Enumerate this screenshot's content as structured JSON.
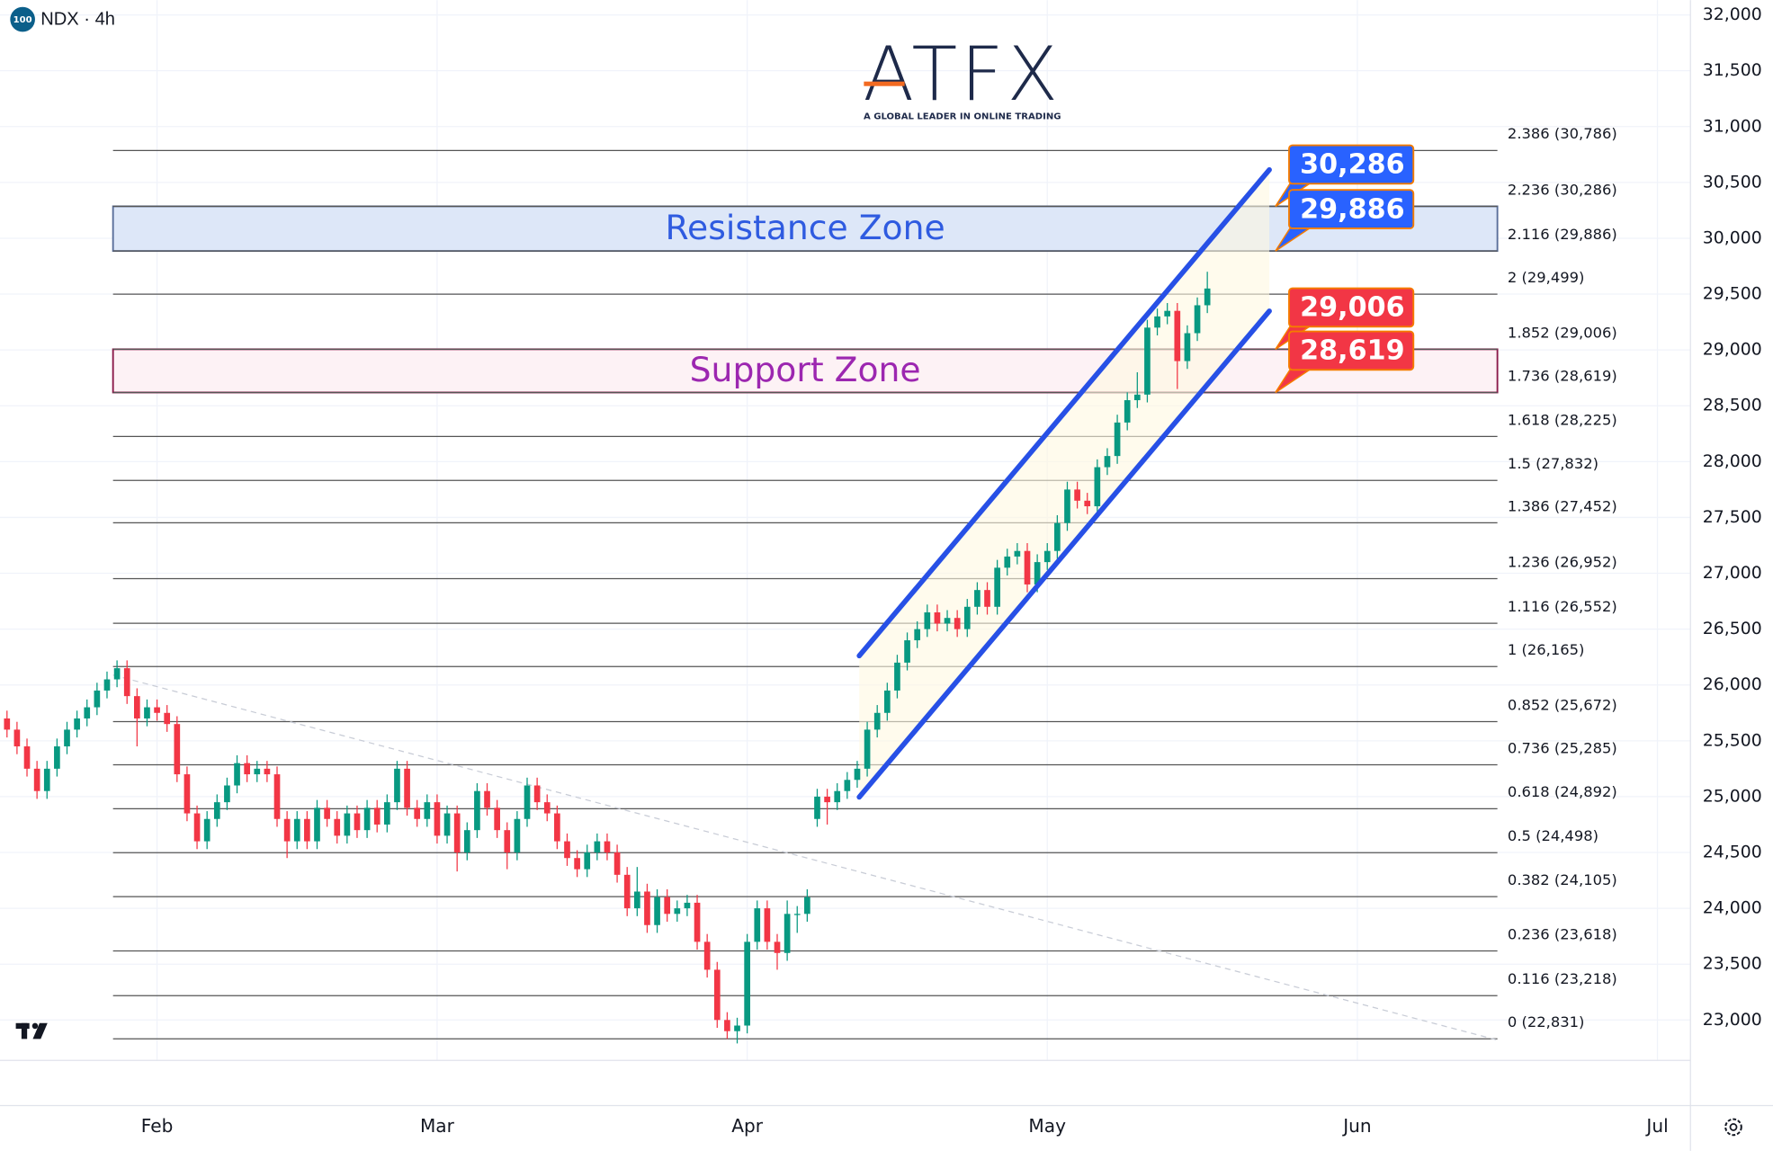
{
  "chart_data": {
    "type": "candlestick",
    "badge": "100",
    "symbol": "NDX · 4h",
    "brand": "ATFX",
    "tagline": "A GLOBAL LEADER IN ONLINE TRADING",
    "up_color": "#089981",
    "down_color": "#f23645",
    "grid": true,
    "xlim": [
      -15.7,
      153.3
    ],
    "ylim": [
      22638,
      32132
    ],
    "xticks": [
      {
        "value": 0,
        "label": "Feb"
      },
      {
        "value": 28,
        "label": "Mar"
      },
      {
        "value": 59,
        "label": "Apr"
      },
      {
        "value": 89,
        "label": "May"
      },
      {
        "value": 120,
        "label": "Jun"
      },
      {
        "value": 150,
        "label": "Jul"
      }
    ],
    "yticks": [
      {
        "value": 23000,
        "label": "23,000"
      },
      {
        "value": 23500,
        "label": "23,500"
      },
      {
        "value": 24000,
        "label": "24,000"
      },
      {
        "value": 24500,
        "label": "24,500"
      },
      {
        "value": 25000,
        "label": "25,000"
      },
      {
        "value": 25500,
        "label": "25,500"
      },
      {
        "value": 26000,
        "label": "26,000"
      },
      {
        "value": 26500,
        "label": "26,500"
      },
      {
        "value": 27000,
        "label": "27,000"
      },
      {
        "value": 27500,
        "label": "27,500"
      },
      {
        "value": 28000,
        "label": "28,000"
      },
      {
        "value": 28500,
        "label": "28,500"
      },
      {
        "value": 29000,
        "label": "29,000"
      },
      {
        "value": 29500,
        "label": "29,500"
      },
      {
        "value": 30000,
        "label": "30,000"
      },
      {
        "value": 30500,
        "label": "30,500"
      },
      {
        "value": 31000,
        "label": "31,000"
      },
      {
        "value": 31500,
        "label": "31,500"
      },
      {
        "value": 32000,
        "label": "32,000"
      }
    ],
    "x": [
      -15,
      -14,
      -13,
      -12,
      -11,
      -10,
      -9,
      -8,
      -7,
      -6,
      -5,
      -4,
      -3,
      -2,
      -1,
      0,
      1,
      2,
      3,
      4,
      5,
      6,
      7,
      8,
      9,
      10,
      11,
      12,
      13,
      14,
      15,
      16,
      17,
      18,
      19,
      20,
      21,
      22,
      23,
      24,
      25,
      26,
      27,
      28,
      29,
      30,
      31,
      32,
      33,
      34,
      35,
      36,
      37,
      38,
      39,
      40,
      41,
      42,
      43,
      44,
      45,
      46,
      47,
      48,
      49,
      50,
      51,
      52,
      53,
      54,
      55,
      56,
      57,
      58,
      59,
      60,
      61,
      62,
      63,
      64,
      65,
      66,
      67,
      68,
      69,
      70,
      71,
      72,
      73,
      74,
      75,
      76,
      77,
      78,
      79,
      80,
      81,
      82,
      83,
      84,
      85,
      86,
      87,
      88,
      89,
      90,
      91,
      92,
      93,
      94,
      95,
      96,
      97,
      98,
      99,
      100,
      101,
      102,
      103,
      104,
      105
    ],
    "open": [
      25700,
      25600,
      25450,
      25250,
      25050,
      25250,
      25450,
      25600,
      25700,
      25800,
      25950,
      26050,
      26150,
      25900,
      25700,
      25800,
      25750,
      25650,
      25200,
      24850,
      24600,
      24800,
      24950,
      25100,
      25300,
      25200,
      25250,
      25200,
      24800,
      24600,
      24800,
      24600,
      24900,
      24800,
      24650,
      24850,
      24700,
      24900,
      24750,
      24950,
      25250,
      24900,
      24800,
      24950,
      24650,
      24850,
      24500,
      24700,
      25050,
      24900,
      24700,
      24500,
      24800,
      25100,
      24950,
      24850,
      24600,
      24450,
      24350,
      24500,
      24600,
      24500,
      24300,
      24000,
      24150,
      23850,
      24100,
      23950,
      24000,
      24050,
      23700,
      23450,
      23000,
      22900,
      22950,
      23700,
      24000,
      23700,
      23600,
      23950,
      23950,
      24800,
      25000,
      24950,
      25050,
      25150,
      25250,
      25600,
      25750,
      25950,
      26200,
      26400,
      26500,
      26650,
      26550,
      26600,
      26500,
      26700,
      26850,
      26700,
      27050,
      27150,
      27200,
      26900,
      27100,
      27200,
      27450,
      27750,
      27650,
      27600,
      27950,
      28050,
      28350,
      28550,
      28600,
      29200,
      29300,
      29350,
      28900,
      29150,
      29400
    ],
    "high": [
      25770,
      25670,
      25520,
      25320,
      25320,
      25520,
      25670,
      25770,
      25870,
      26020,
      26120,
      26220,
      26220,
      25970,
      25870,
      25870,
      25820,
      25720,
      25270,
      24920,
      24870,
      25020,
      25170,
      25370,
      25370,
      25320,
      25320,
      25270,
      24870,
      24870,
      24870,
      24970,
      24970,
      24870,
      24920,
      24920,
      24970,
      24970,
      25020,
      25320,
      25320,
      24970,
      25020,
      25020,
      24920,
      24920,
      24770,
      25120,
      25120,
      24970,
      24770,
      24870,
      25170,
      25170,
      25020,
      24920,
      24670,
      24520,
      24570,
      24670,
      24670,
      24570,
      24370,
      24370,
      24220,
      24170,
      24170,
      24070,
      24120,
      24120,
      23770,
      23520,
      23070,
      23020,
      23770,
      24070,
      24070,
      23770,
      24070,
      24020,
      24170,
      25070,
      25070,
      25120,
      25220,
      25320,
      25670,
      25820,
      26020,
      26270,
      26470,
      26570,
      26720,
      26720,
      26670,
      26670,
      26770,
      26920,
      26920,
      27120,
      27220,
      27270,
      27270,
      27170,
      27270,
      27520,
      27820,
      27820,
      27720,
      28020,
      28120,
      28420,
      28620,
      28800,
      29270,
      29370,
      29420,
      29420,
      29220,
      29470,
      29700
    ],
    "low": [
      25530,
      25380,
      25180,
      24980,
      24980,
      25180,
      25380,
      25530,
      25630,
      25730,
      25880,
      25980,
      25830,
      25450,
      25630,
      25680,
      25580,
      25130,
      24780,
      24530,
      24530,
      24730,
      24880,
      25030,
      25130,
      25130,
      25130,
      24730,
      24450,
      24530,
      24530,
      24530,
      24730,
      24580,
      24580,
      24630,
      24630,
      24680,
      24680,
      24880,
      24830,
      24730,
      24730,
      24580,
      24580,
      24330,
      24430,
      24630,
      24830,
      24630,
      24350,
      24430,
      24730,
      24880,
      24780,
      24530,
      24380,
      24280,
      24280,
      24430,
      24430,
      24230,
      23930,
      23930,
      23780,
      23780,
      23880,
      23880,
      23930,
      23630,
      23380,
      22930,
      22830,
      22790,
      22880,
      23630,
      23630,
      23450,
      23530,
      23780,
      23880,
      24730,
      24750,
      24880,
      24980,
      25080,
      25180,
      25530,
      25680,
      25880,
      26130,
      26330,
      26430,
      26480,
      26480,
      26430,
      26430,
      26630,
      26630,
      26630,
      26980,
      27080,
      26830,
      26830,
      27030,
      27130,
      27380,
      27580,
      27530,
      27530,
      27880,
      27980,
      28280,
      28480,
      28530,
      29130,
      29230,
      28650,
      28830,
      29080,
      29330
    ],
    "close": [
      25600,
      25450,
      25250,
      25050,
      25250,
      25450,
      25600,
      25700,
      25800,
      25950,
      26050,
      26150,
      25900,
      25700,
      25800,
      25750,
      25650,
      25200,
      24850,
      24600,
      24800,
      24950,
      25100,
      25300,
      25200,
      25250,
      25200,
      24800,
      24600,
      24800,
      24600,
      24900,
      24800,
      24650,
      24850,
      24700,
      24900,
      24750,
      24950,
      25250,
      24900,
      24800,
      24950,
      24650,
      24850,
      24500,
      24700,
      25050,
      24900,
      24700,
      24500,
      24800,
      25100,
      24950,
      24850,
      24600,
      24450,
      24350,
      24500,
      24600,
      24500,
      24300,
      24000,
      24150,
      23850,
      24100,
      23950,
      24000,
      24050,
      23700,
      23450,
      23000,
      22900,
      22950,
      23700,
      24000,
      23700,
      23600,
      23950,
      23950,
      24100,
      25000,
      24950,
      25050,
      25150,
      25250,
      25600,
      25750,
      25950,
      26200,
      26400,
      26500,
      26650,
      26550,
      26600,
      26500,
      26700,
      26850,
      26700,
      27050,
      27150,
      27200,
      26900,
      27100,
      27200,
      27450,
      27750,
      27650,
      27600,
      27950,
      28050,
      28350,
      28550,
      28600,
      29200,
      29300,
      29350,
      28900,
      29150,
      29400,
      29550
    ],
    "fib_range": [
      -4.4,
      134
    ],
    "fib_levels": [
      {
        "value": 30786,
        "label": "2.386 (30,786)"
      },
      {
        "value": 30286,
        "label": "2.236 (30,286)"
      },
      {
        "value": 29886,
        "label": "2.116 (29,886)"
      },
      {
        "value": 29499,
        "label": "2 (29,499)"
      },
      {
        "value": 29006,
        "label": "1.852 (29,006)"
      },
      {
        "value": 28619,
        "label": "1.736 (28,619)"
      },
      {
        "value": 28225,
        "label": "1.618 (28,225)"
      },
      {
        "value": 27832,
        "label": "1.5 (27,832)"
      },
      {
        "value": 27452,
        "label": "1.386 (27,452)"
      },
      {
        "value": 26952,
        "label": "1.236 (26,952)"
      },
      {
        "value": 26552,
        "label": "1.116 (26,552)"
      },
      {
        "value": 26165,
        "label": "1 (26,165)"
      },
      {
        "value": 25672,
        "label": "0.852 (25,672)"
      },
      {
        "value": 25285,
        "label": "0.736 (25,285)"
      },
      {
        "value": 24892,
        "label": "0.618 (24,892)"
      },
      {
        "value": 24498,
        "label": "0.5 (24,498)"
      },
      {
        "value": 24105,
        "label": "0.382 (24,105)"
      },
      {
        "value": 23618,
        "label": "0.236 (23,618)"
      },
      {
        "value": 23218,
        "label": "0.116 (23,218)"
      },
      {
        "value": 22831,
        "label": "0 (22,831)"
      }
    ],
    "zones": [
      {
        "name": "Resistance Zone",
        "low": 29886,
        "high": 30286,
        "color": "#2f5be0",
        "fill": "#dde7f8",
        "border": "#5a6f9a"
      },
      {
        "name": "Support Zone",
        "low": 28619,
        "high": 29006,
        "color": "#9c27b0",
        "fill": "#fdf2f5",
        "border": "#8b1a4a"
      }
    ],
    "price_tags": [
      {
        "value": 30286,
        "label": "30,286",
        "color": "#2962ff"
      },
      {
        "value": 29886,
        "label": "29,886",
        "color": "#2962ff"
      },
      {
        "value": 29006,
        "label": "29,006",
        "color": "#f23645"
      },
      {
        "value": 28619,
        "label": "28,619",
        "color": "#f23645"
      }
    ],
    "channel": {
      "color": "#2750e6",
      "upper": {
        "x": [
          70.2,
          111.2
        ],
        "y": [
          26261,
          30613
        ]
      },
      "lower": {
        "x": [
          70.2,
          111.2
        ],
        "y": [
          24996,
          29348
        ]
      }
    },
    "trendline": {
      "x": [
        -4.4,
        134
      ],
      "y": [
        26089,
        22820
      ]
    }
  }
}
